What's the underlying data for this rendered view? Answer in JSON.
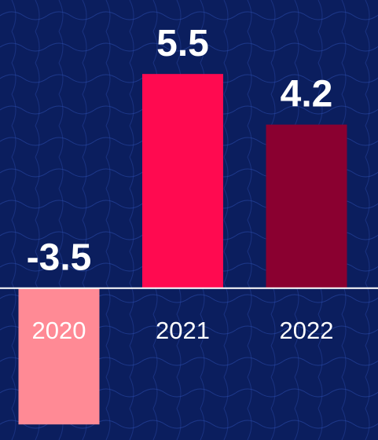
{
  "chart_data": {
    "type": "bar",
    "categories": [
      "2020",
      "2021",
      "2022"
    ],
    "values": [
      -3.5,
      5.5,
      4.2
    ],
    "colors": [
      "#ff8a95",
      "#ff0a50",
      "#8a0030"
    ],
    "ylim": [
      -3.9,
      7.4
    ]
  }
}
